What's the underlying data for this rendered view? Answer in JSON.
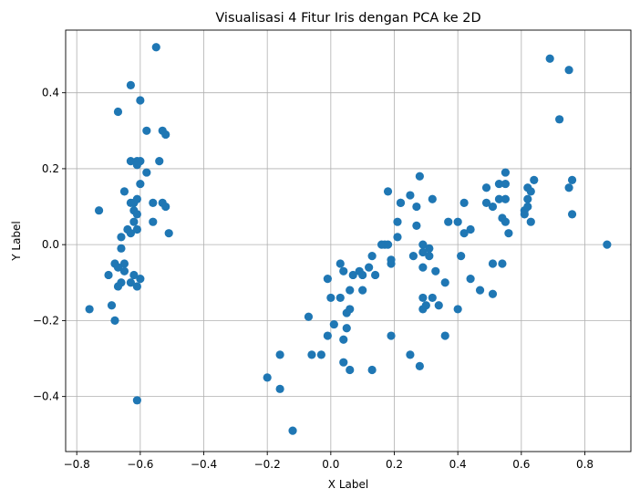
{
  "chart_data": {
    "type": "scatter",
    "title": "Visualisasi 4 Fitur Iris dengan PCA ke 2D",
    "xlabel": "X Label",
    "ylabel": "Y Label",
    "xlim": [
      -0.835,
      0.945
    ],
    "ylim": [
      -0.545,
      0.565
    ],
    "xticks": [
      -0.8,
      -0.6,
      -0.4,
      -0.2,
      0.0,
      0.2,
      0.4,
      0.6,
      0.8
    ],
    "yticks": [
      -0.4,
      -0.2,
      0.0,
      0.2,
      0.4
    ],
    "xtick_labels": [
      "−0.8",
      "−0.6",
      "−0.4",
      "−0.2",
      "0.0",
      "0.2",
      "0.4",
      "0.6",
      "0.8"
    ],
    "ytick_labels": [
      "−0.4",
      "−0.2",
      "0.0",
      "0.2",
      "0.4"
    ],
    "grid": true,
    "color": "#1f77b4",
    "series": [
      {
        "points": [
          [
            -0.55,
            0.52
          ],
          [
            -0.63,
            0.42
          ],
          [
            -0.6,
            0.38
          ],
          [
            -0.67,
            0.35
          ],
          [
            -0.58,
            0.3
          ],
          [
            -0.53,
            0.3
          ],
          [
            -0.52,
            0.29
          ],
          [
            -0.63,
            0.22
          ],
          [
            -0.61,
            0.22
          ],
          [
            -0.6,
            0.22
          ],
          [
            -0.54,
            0.22
          ],
          [
            -0.61,
            0.21
          ],
          [
            -0.58,
            0.19
          ],
          [
            -0.6,
            0.16
          ],
          [
            -0.65,
            0.14
          ],
          [
            -0.61,
            0.12
          ],
          [
            -0.62,
            0.11
          ],
          [
            -0.63,
            0.11
          ],
          [
            -0.56,
            0.11
          ],
          [
            -0.53,
            0.11
          ],
          [
            -0.52,
            0.1
          ],
          [
            -0.73,
            0.09
          ],
          [
            -0.62,
            0.09
          ],
          [
            -0.61,
            0.08
          ],
          [
            -0.62,
            0.06
          ],
          [
            -0.56,
            0.06
          ],
          [
            -0.61,
            0.04
          ],
          [
            -0.64,
            0.04
          ],
          [
            -0.51,
            0.03
          ],
          [
            -0.63,
            0.03
          ],
          [
            -0.66,
            0.02
          ],
          [
            -0.66,
            -0.01
          ],
          [
            -0.68,
            -0.05
          ],
          [
            -0.65,
            -0.05
          ],
          [
            -0.67,
            -0.06
          ],
          [
            -0.65,
            -0.07
          ],
          [
            -0.62,
            -0.08
          ],
          [
            -0.7,
            -0.08
          ],
          [
            -0.6,
            -0.09
          ],
          [
            -0.66,
            -0.1
          ],
          [
            -0.63,
            -0.1
          ],
          [
            -0.67,
            -0.11
          ],
          [
            -0.61,
            -0.11
          ],
          [
            -0.69,
            -0.16
          ],
          [
            -0.76,
            -0.17
          ],
          [
            -0.68,
            -0.2
          ],
          [
            -0.61,
            -0.41
          ],
          [
            -0.2,
            -0.35
          ],
          [
            -0.16,
            -0.29
          ],
          [
            -0.16,
            -0.38
          ],
          [
            -0.12,
            -0.49
          ],
          [
            -0.07,
            -0.19
          ],
          [
            -0.06,
            -0.29
          ],
          [
            -0.03,
            -0.29
          ],
          [
            -0.01,
            -0.24
          ],
          [
            -0.01,
            -0.09
          ],
          [
            0.0,
            -0.14
          ],
          [
            0.01,
            -0.21
          ],
          [
            0.03,
            -0.14
          ],
          [
            0.03,
            -0.05
          ],
          [
            0.04,
            -0.25
          ],
          [
            0.04,
            -0.31
          ],
          [
            0.04,
            -0.07
          ],
          [
            0.05,
            -0.18
          ],
          [
            0.05,
            -0.22
          ],
          [
            0.06,
            -0.33
          ],
          [
            0.06,
            -0.12
          ],
          [
            0.06,
            -0.17
          ],
          [
            0.07,
            -0.08
          ],
          [
            0.09,
            -0.07
          ],
          [
            0.1,
            -0.12
          ],
          [
            0.1,
            -0.08
          ],
          [
            0.12,
            -0.06
          ],
          [
            0.13,
            -0.03
          ],
          [
            0.13,
            -0.33
          ],
          [
            0.14,
            -0.08
          ],
          [
            0.16,
            0.0
          ],
          [
            0.17,
            0.0
          ],
          [
            0.18,
            0.0
          ],
          [
            0.18,
            0.14
          ],
          [
            0.19,
            -0.05
          ],
          [
            0.19,
            -0.04
          ],
          [
            0.19,
            -0.24
          ],
          [
            0.21,
            0.06
          ],
          [
            0.21,
            0.02
          ],
          [
            0.22,
            0.11
          ],
          [
            0.22,
            0.11
          ],
          [
            0.25,
            0.13
          ],
          [
            0.25,
            -0.29
          ],
          [
            0.26,
            -0.03
          ],
          [
            0.27,
            0.05
          ],
          [
            0.27,
            0.1
          ],
          [
            0.28,
            0.18
          ],
          [
            0.28,
            -0.32
          ],
          [
            0.29,
            0.0
          ],
          [
            0.29,
            -0.02
          ],
          [
            0.29,
            -0.06
          ],
          [
            0.29,
            -0.14
          ],
          [
            0.29,
            -0.17
          ],
          [
            0.3,
            -0.16
          ],
          [
            0.31,
            -0.01
          ],
          [
            0.31,
            -0.03
          ],
          [
            0.32,
            0.12
          ],
          [
            0.32,
            -0.14
          ],
          [
            0.33,
            -0.07
          ],
          [
            0.34,
            -0.16
          ],
          [
            0.36,
            -0.1
          ],
          [
            0.36,
            -0.24
          ],
          [
            0.37,
            0.06
          ],
          [
            0.4,
            0.06
          ],
          [
            0.4,
            -0.17
          ],
          [
            0.41,
            -0.03
          ],
          [
            0.42,
            0.11
          ],
          [
            0.42,
            0.03
          ],
          [
            0.44,
            0.04
          ],
          [
            0.44,
            -0.09
          ],
          [
            0.47,
            -0.12
          ],
          [
            0.49,
            0.15
          ],
          [
            0.49,
            0.11
          ],
          [
            0.51,
            0.1
          ],
          [
            0.51,
            -0.05
          ],
          [
            0.51,
            -0.13
          ],
          [
            0.53,
            0.16
          ],
          [
            0.53,
            0.12
          ],
          [
            0.54,
            0.07
          ],
          [
            0.54,
            -0.05
          ],
          [
            0.55,
            0.19
          ],
          [
            0.55,
            0.16
          ],
          [
            0.55,
            0.12
          ],
          [
            0.55,
            0.06
          ],
          [
            0.56,
            0.03
          ],
          [
            0.61,
            0.09
          ],
          [
            0.61,
            0.08
          ],
          [
            0.62,
            0.15
          ],
          [
            0.62,
            0.1
          ],
          [
            0.62,
            0.12
          ],
          [
            0.63,
            0.14
          ],
          [
            0.63,
            0.06
          ],
          [
            0.64,
            0.17
          ],
          [
            0.69,
            0.49
          ],
          [
            0.72,
            0.33
          ],
          [
            0.75,
            0.46
          ],
          [
            0.75,
            0.15
          ],
          [
            0.76,
            0.17
          ],
          [
            0.76,
            0.08
          ],
          [
            0.87,
            0.0
          ]
        ]
      }
    ]
  }
}
